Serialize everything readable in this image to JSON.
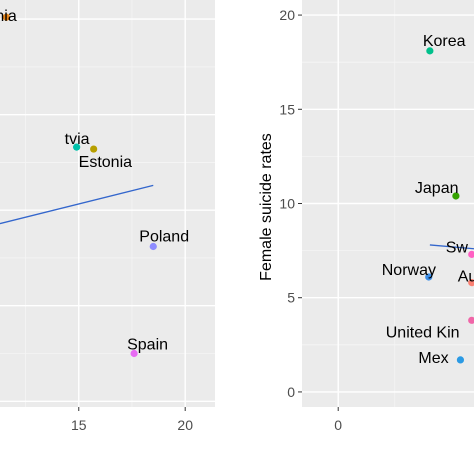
{
  "colors": {
    "panel_background": "#ebebeb",
    "grid_major": "#ffffff",
    "grid_minor": "#f5f5f5",
    "axis_tick": "#333333",
    "regression_line": "#3366cc"
  },
  "chart_data": [
    {
      "type": "scatter",
      "title": "",
      "xlabel": "",
      "ylabel": "",
      "xlim": [
        11.3,
        21.4
      ],
      "ylim": [
        -0.3,
        21
      ],
      "x_ticks": [
        15,
        20
      ],
      "x_tick_labels": [
        "15",
        "20"
      ],
      "y_ticks": [
        0,
        5,
        10,
        15,
        20
      ],
      "grid": true,
      "points": [
        {
          "label": "nia",
          "x": 11.6,
          "y": 20.1,
          "color": "#e7861b"
        },
        {
          "label": "tvia",
          "x": 14.9,
          "y": 13.3,
          "color": "#00c1aa"
        },
        {
          "label": "Estonia",
          "x": 15.7,
          "y": 13.2,
          "color": "#b79f00"
        },
        {
          "label": "Poland",
          "x": 18.5,
          "y": 8.1,
          "color": "#8e8cff"
        },
        {
          "label": "Spain",
          "x": 17.6,
          "y": 2.5,
          "color": "#e76bf3"
        }
      ],
      "regression_line": {
        "x": [
          11.3,
          18.5
        ],
        "y": [
          9.3,
          11.3
        ]
      }
    },
    {
      "type": "scatter",
      "title": "",
      "xlabel": "",
      "ylabel": "Female suicide rates",
      "xlim": [
        -1.6,
        6
      ],
      "ylim": [
        -0.8,
        20.8
      ],
      "x_ticks": [
        0
      ],
      "x_tick_labels": [
        "0"
      ],
      "y_ticks": [
        0,
        5,
        10,
        15,
        20
      ],
      "y_tick_labels": [
        "0",
        "5",
        "10",
        "15",
        "20"
      ],
      "grid": true,
      "points": [
        {
          "label": "Korea",
          "x": 4.05,
          "y": 18.1,
          "color": "#00c08b"
        },
        {
          "label": "Japan",
          "x": 5.2,
          "y": 10.4,
          "color": "#35a200"
        },
        {
          "label": "Sw",
          "x": 5.9,
          "y": 7.3,
          "color": "#ff61c3"
        },
        {
          "label": "Norway",
          "x": 4.0,
          "y": 6.1,
          "color": "#3c8ee8"
        },
        {
          "label": "Au",
          "x": 5.9,
          "y": 5.8,
          "color": "#fa8072"
        },
        {
          "label": "United Kin",
          "x": 5.9,
          "y": 3.8,
          "color": "#f066a8"
        },
        {
          "label": "Mex",
          "x": 5.4,
          "y": 1.7,
          "color": "#2b9ae4"
        }
      ],
      "regression_line": {
        "x": [
          4.05,
          6
        ],
        "y": [
          7.8,
          7.6
        ]
      }
    }
  ]
}
